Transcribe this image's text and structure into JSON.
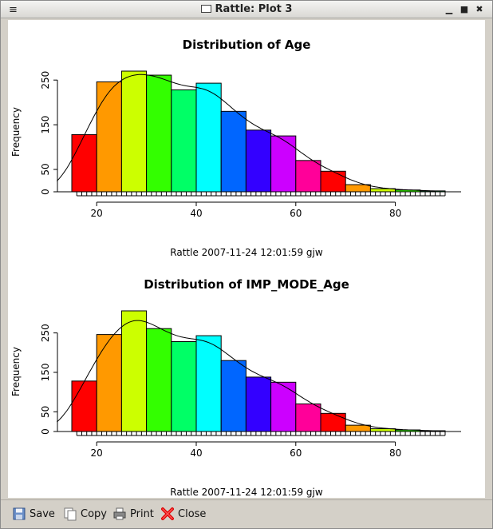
{
  "window": {
    "menu_glyph": "≡",
    "title": "Rattle: Plot 3",
    "minimize_glyph": "▁",
    "maximize_glyph": "■",
    "close_glyph": "✖"
  },
  "toolbar": {
    "save": {
      "label": "Save",
      "icon": "save-icon"
    },
    "copy": {
      "label": "Copy",
      "icon": "copy-icon"
    },
    "print": {
      "label": "Print",
      "icon": "print-icon"
    },
    "close": {
      "label": "Close",
      "icon": "close-icon"
    }
  },
  "chart_data": [
    {
      "type": "bar",
      "title": "Distribution of Age",
      "ylabel": "Frequency",
      "xlabel": "",
      "caption": "Rattle 2007-11-24 12:01:59 gjw",
      "bin_edges": [
        15,
        20,
        25,
        30,
        35,
        40,
        45,
        50,
        55,
        60,
        65,
        70,
        75,
        80,
        85,
        90
      ],
      "values": [
        128,
        246,
        270,
        261,
        228,
        243,
        180,
        138,
        125,
        70,
        46,
        16,
        7,
        4,
        2
      ],
      "xticks": [
        20,
        40,
        60,
        80
      ],
      "yticks": [
        0,
        50,
        150,
        250
      ],
      "xlim": [
        15,
        90
      ],
      "ylim": [
        0,
        270
      ],
      "density_curve": true,
      "rug": true,
      "colors": [
        "#ff0000",
        "#ff9900",
        "#ccff00",
        "#33ff00",
        "#00ff66",
        "#00ffff",
        "#0066ff",
        "#3300ff",
        "#cc00ff",
        "#ff0099",
        "#ff0000",
        "#ff9900",
        "#ccff00",
        "#33ff00",
        "#00ff66"
      ]
    },
    {
      "type": "bar",
      "title": "Distribution of IMP_MODE_Age",
      "ylabel": "Frequency",
      "xlabel": "",
      "caption": "Rattle 2007-11-24 12:01:59 gjw",
      "bin_edges": [
        15,
        20,
        25,
        30,
        35,
        40,
        45,
        50,
        55,
        60,
        65,
        70,
        75,
        80,
        85,
        90
      ],
      "values": [
        128,
        246,
        306,
        261,
        228,
        243,
        180,
        138,
        125,
        70,
        46,
        16,
        7,
        4,
        2
      ],
      "xticks": [
        20,
        40,
        60,
        80
      ],
      "yticks": [
        0,
        50,
        150,
        250
      ],
      "xlim": [
        15,
        90
      ],
      "ylim": [
        0,
        306
      ],
      "density_curve": true,
      "rug": true,
      "colors": [
        "#ff0000",
        "#ff9900",
        "#ccff00",
        "#33ff00",
        "#00ff66",
        "#00ffff",
        "#0066ff",
        "#3300ff",
        "#cc00ff",
        "#ff0099",
        "#ff0000",
        "#ff9900",
        "#ccff00",
        "#33ff00",
        "#00ff66"
      ]
    }
  ]
}
